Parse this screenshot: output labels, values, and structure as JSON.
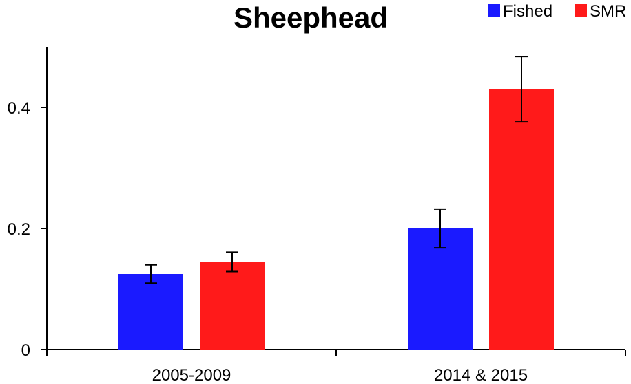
{
  "chart_data": {
    "type": "bar",
    "title": "Sheephead",
    "categories": [
      "2005-2009",
      "2014 & 2015"
    ],
    "series": [
      {
        "name": "Fished",
        "color": "#1a1aff",
        "values": [
          0.125,
          0.2
        ],
        "error": [
          0.015,
          0.032
        ]
      },
      {
        "name": "SMR",
        "color": "#ff1a1a",
        "values": [
          0.145,
          0.43
        ],
        "error": [
          0.016,
          0.054
        ]
      }
    ],
    "ylim": [
      0,
      0.5
    ],
    "yticks": [
      0,
      0.2,
      0.4
    ],
    "ytick_labels": [
      "0",
      "0.2",
      "0.4"
    ],
    "legend_position": "top-right",
    "grid": false
  }
}
